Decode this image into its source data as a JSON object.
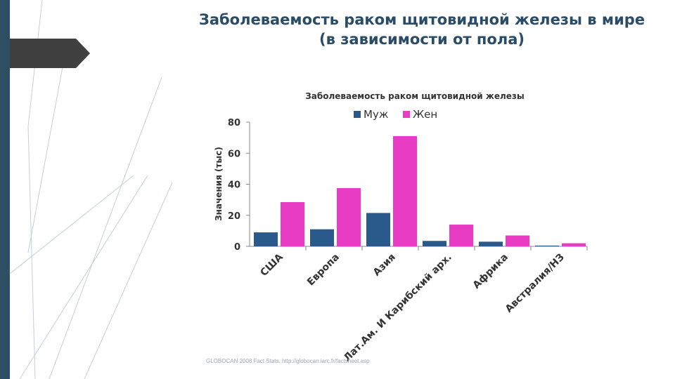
{
  "slide": {
    "title_line1": "Заболеваемость раком щитовидной железы в мире",
    "title_line2": "(в зависимости от пола)",
    "source": "GLOBOCAN 2008 Fact Stats. http://globocan.iarc.fr/factsheet.asp"
  },
  "colors": {
    "accent_dark": "#2d4f63",
    "male": "#2a5a8c",
    "female": "#e83cc4",
    "title": "#2a4c66"
  },
  "chart_data": {
    "type": "bar",
    "title": "Заболеваемость раком щитовидной железы",
    "xlabel": "",
    "ylabel": "Значения (тыс)",
    "ylim": [
      0,
      80
    ],
    "yticks": [
      0,
      20,
      40,
      60,
      80
    ],
    "grid": false,
    "legend_position": "top",
    "categories": [
      "США",
      "Европа",
      "Азия",
      "Лат.Ам. И Карибский арх.",
      "Африка",
      "Австралия/НЗ"
    ],
    "series": [
      {
        "name": "Муж",
        "color": "#2a5a8c",
        "values": [
          9,
          11,
          21.5,
          3.5,
          3,
          0.5
        ]
      },
      {
        "name": "Жен",
        "color": "#e83cc4",
        "values": [
          28.5,
          37.5,
          71,
          14,
          7,
          2
        ]
      }
    ]
  }
}
